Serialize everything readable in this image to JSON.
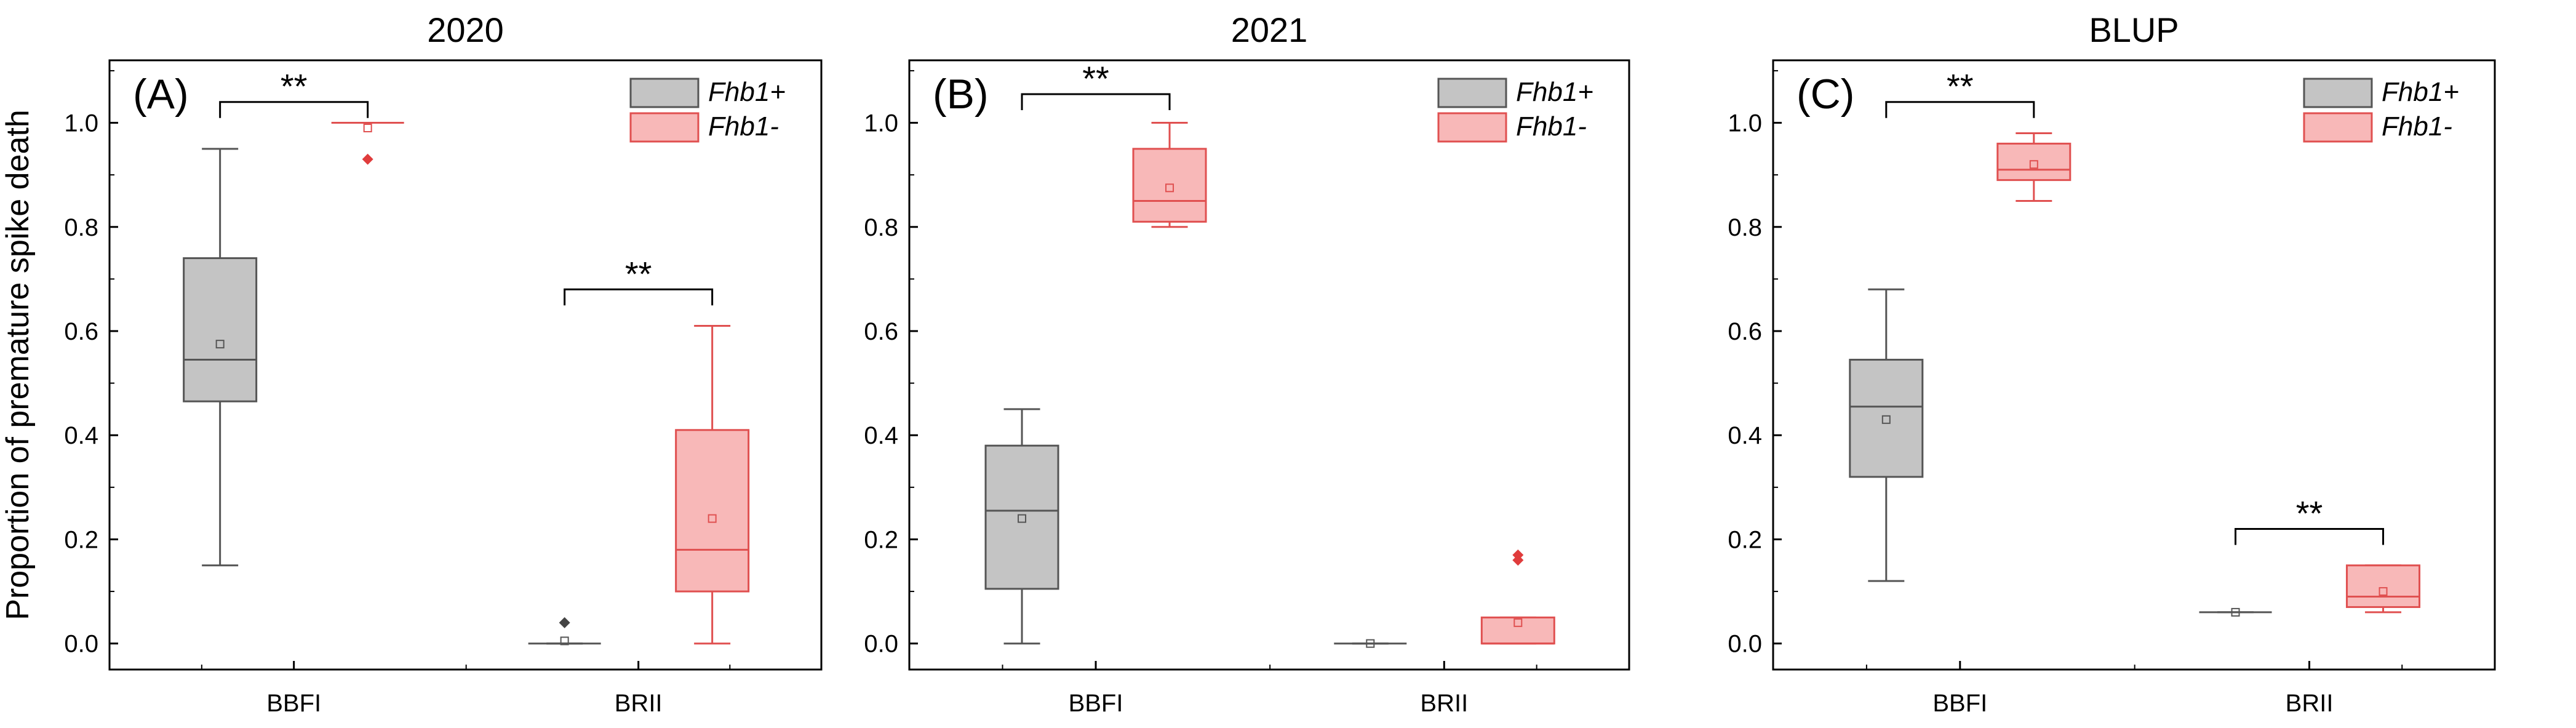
{
  "chart_data": [
    {
      "type": "box",
      "title": "2020",
      "panel_label": "(A)",
      "ylabel": "Proportion of premature spike death",
      "categories": [
        "BBFI",
        "BRII"
      ],
      "yticks": [
        "0.0",
        "0.2",
        "0.4",
        "0.6",
        "0.8",
        "1.0"
      ],
      "ylim": [
        -0.05,
        1.12
      ],
      "legend": {
        "position": "top-right",
        "entries": [
          "Fhb1+",
          "Fhb1-"
        ]
      },
      "series": [
        {
          "name": "Fhb1+",
          "color": "#555555",
          "fill": "#c4c4c4",
          "boxes": [
            {
              "category": "BBFI",
              "min": 0.15,
              "q1": 0.465,
              "median": 0.545,
              "q3": 0.74,
              "max": 0.95,
              "mean": 0.575,
              "outliers": []
            },
            {
              "category": "BRII",
              "min": 0.0,
              "q1": 0.0,
              "median": 0.0,
              "q3": 0.0,
              "max": 0.0,
              "mean": 0.005,
              "outliers": [
                0.04
              ]
            }
          ]
        },
        {
          "name": "Fhb1-",
          "color": "#e05050",
          "fill": "#f8b8b8",
          "boxes": [
            {
              "category": "BBFI",
              "min": 1.0,
              "q1": 1.0,
              "median": 1.0,
              "q3": 1.0,
              "max": 1.0,
              "mean": 0.99,
              "outliers": [
                0.93
              ]
            },
            {
              "category": "BRII",
              "min": 0.0,
              "q1": 0.1,
              "median": 0.18,
              "q3": 0.41,
              "max": 0.61,
              "mean": 0.24,
              "outliers": []
            }
          ]
        }
      ],
      "significance": [
        {
          "category": "BBFI",
          "label": "**",
          "y": 1.04
        },
        {
          "category": "BRII",
          "label": "**",
          "y": 0.68
        }
      ]
    },
    {
      "type": "box",
      "title": "2021",
      "panel_label": "(B)",
      "categories": [
        "BBFI",
        "BRII"
      ],
      "yticks": [
        "0.0",
        "0.2",
        "0.4",
        "0.6",
        "0.8",
        "1.0"
      ],
      "ylim": [
        -0.05,
        1.12
      ],
      "legend": {
        "position": "top-right",
        "entries": [
          "Fhb1+",
          "Fhb1-"
        ]
      },
      "series": [
        {
          "name": "Fhb1+",
          "color": "#555555",
          "fill": "#c4c4c4",
          "boxes": [
            {
              "category": "BBFI",
              "min": 0.0,
              "q1": 0.105,
              "median": 0.255,
              "q3": 0.38,
              "max": 0.45,
              "mean": 0.24,
              "outliers": []
            },
            {
              "category": "BRII",
              "min": 0.0,
              "q1": 0.0,
              "median": 0.0,
              "q3": 0.0,
              "max": 0.0,
              "mean": 0.0,
              "outliers": []
            }
          ]
        },
        {
          "name": "Fhb1-",
          "color": "#e05050",
          "fill": "#f8b8b8",
          "boxes": [
            {
              "category": "BBFI",
              "min": 0.8,
              "q1": 0.81,
              "median": 0.85,
              "q3": 0.95,
              "max": 1.0,
              "mean": 0.875,
              "outliers": []
            },
            {
              "category": "BRII",
              "min": 0.0,
              "q1": 0.0,
              "median": 0.0,
              "q3": 0.05,
              "max": 0.05,
              "mean": 0.04,
              "outliers": [
                0.16,
                0.17
              ]
            }
          ]
        }
      ],
      "significance": [
        {
          "category": "BBFI",
          "label": "**",
          "y": 1.055
        }
      ]
    },
    {
      "type": "box",
      "title": "BLUP",
      "panel_label": "(C)",
      "categories": [
        "BBFI",
        "BRII"
      ],
      "yticks": [
        "0.0",
        "0.2",
        "0.4",
        "0.6",
        "0.8",
        "1.0"
      ],
      "ylim": [
        -0.05,
        1.12
      ],
      "legend": {
        "position": "top-right",
        "entries": [
          "Fhb1+",
          "Fhb1-"
        ]
      },
      "series": [
        {
          "name": "Fhb1+",
          "color": "#555555",
          "fill": "#c4c4c4",
          "boxes": [
            {
              "category": "BBFI",
              "min": 0.12,
              "q1": 0.32,
              "median": 0.455,
              "q3": 0.545,
              "max": 0.68,
              "mean": 0.43,
              "outliers": []
            },
            {
              "category": "BRII",
              "min": 0.06,
              "q1": 0.06,
              "median": 0.06,
              "q3": 0.06,
              "max": 0.06,
              "mean": 0.06,
              "outliers": []
            }
          ]
        },
        {
          "name": "Fhb1-",
          "color": "#e05050",
          "fill": "#f8b8b8",
          "boxes": [
            {
              "category": "BBFI",
              "min": 0.85,
              "q1": 0.89,
              "median": 0.91,
              "q3": 0.96,
              "max": 0.98,
              "mean": 0.92,
              "outliers": []
            },
            {
              "category": "BRII",
              "min": 0.06,
              "q1": 0.07,
              "median": 0.09,
              "q3": 0.15,
              "max": 0.15,
              "mean": 0.1,
              "outliers": []
            }
          ]
        }
      ],
      "significance": [
        {
          "category": "BBFI",
          "label": "**",
          "y": 1.04
        },
        {
          "category": "BRII",
          "label": "**",
          "y": 0.22
        }
      ]
    }
  ]
}
